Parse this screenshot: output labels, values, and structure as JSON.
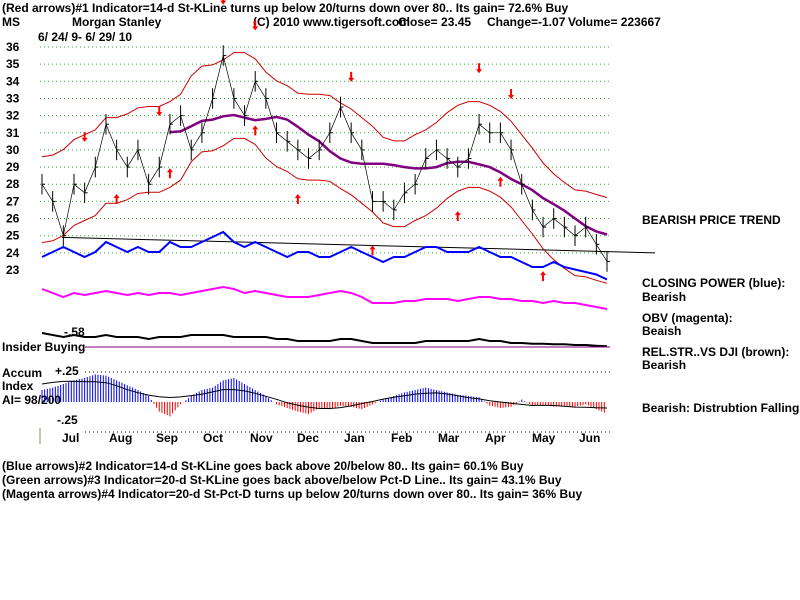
{
  "header": {
    "line1": "(Red arrows)#1 Indicator=14-d St-KLine turns up below 20/turns down over 80.. Its gain= 72.6% Buy",
    "symbol": "MS",
    "company": "Morgan Stanley",
    "copyright": "(C) 2010 www.tigersoft.com",
    "close": "Close=  23.45",
    "change": "Change=-1.07",
    "volume": "Volume= 223667",
    "date_range": "6/ 24/ 9- 6/ 29/ 10"
  },
  "labels": {
    "insider": "Insider Buying",
    "insider_value": "-.58",
    "accum_title": "Accum",
    "accum_title2": "Index",
    "accum_ai": "AI= 98/200",
    "accum_top": "+.25",
    "accum_bottom": "-.25",
    "trend": "BEARISH PRICE TREND",
    "cp_title": "CLOSING POWER (blue):",
    "cp_value": "Bearish",
    "obv_title": "OBV (magenta):",
    "obv_value": "Beaish",
    "rs_title": "REL.STR..VS DJI (brown):",
    "rs_value": "Bearish",
    "accum_status": "Bearish: Distrubtion Falling."
  },
  "footer": [
    "(Blue arrows)#2 Indicator=14-d St-KLine goes back above 20/below 80.. Its gain= 60.1% Buy",
    "(Green arrows)#3 Indicator=20-d St-KLine goes back above/below Pct-D Line.. Its gain= 43.1% Buy",
    "(Magenta arrows)#4 Indicator=20-d St-Pct-D turns up below 20/turns down over 80.. Its gain= 36% Buy"
  ],
  "chart_data": {
    "type": "line",
    "ylim": [
      23,
      36
    ],
    "yticks": [
      "36",
      "35",
      "34",
      "33",
      "32",
      "31",
      "30",
      "29",
      "28",
      "27",
      "26",
      "25",
      "24",
      "23"
    ],
    "months": [
      "Jul",
      "Aug",
      "Sep",
      "Oct",
      "Nov",
      "Dec",
      "Jan",
      "Feb",
      "Mar",
      "Apr",
      "May",
      "Jun"
    ],
    "grid": true,
    "colors": {
      "price": "#000000",
      "bands": "#cc0000",
      "ma": "#800080",
      "closing_power": "#0000ff",
      "obv": "#ff00ff",
      "rel_str": "#000000",
      "accum_pos": "#0000ff",
      "accum_neg": "#ff0000",
      "arrow": "#ff0000"
    },
    "price": [
      28,
      27,
      25,
      28,
      27.5,
      29,
      31.5,
      30,
      29,
      30,
      28,
      29,
      31.5,
      32,
      30,
      31,
      33,
      35.5,
      33,
      32,
      34,
      33,
      31,
      30.5,
      30,
      29.5,
      30,
      31,
      32.5,
      31,
      30,
      27,
      27,
      26.5,
      27.5,
      28,
      29.5,
      30,
      29.5,
      29,
      29.5,
      31.5,
      31,
      31,
      30,
      28,
      26.5,
      25.5,
      26,
      25.5,
      25,
      25.5,
      24.5,
      23.5
    ],
    "closing_power": [
      3,
      4,
      5,
      4,
      3,
      4,
      6,
      5,
      4,
      5,
      4,
      4,
      6,
      5,
      5,
      6,
      7,
      8,
      6,
      5,
      6,
      5,
      4,
      3,
      4,
      4,
      3,
      3,
      4,
      5,
      4,
      3,
      2,
      3,
      3,
      4,
      5,
      5,
      4,
      4,
      4,
      5,
      4,
      3,
      3,
      2,
      1,
      1,
      2,
      1,
      0.5,
      0,
      -0.5,
      -1.5
    ],
    "obv": [
      4,
      3,
      2,
      3,
      2.5,
      3,
      3.5,
      3,
      2.5,
      3,
      2.5,
      3,
      3,
      2.5,
      3,
      3.5,
      4,
      4.5,
      4,
      3,
      3.5,
      3,
      2.5,
      2,
      2,
      2,
      2.5,
      3,
      3.5,
      3,
      2,
      0.5,
      0.5,
      0.5,
      1,
      1,
      1.5,
      1.5,
      1.5,
      1,
      1.5,
      2,
      2,
      1.5,
      1.5,
      1,
      1,
      0.5,
      1,
      0.5,
      0.5,
      0,
      -0.5,
      -1
    ],
    "rel_str": [
      3,
      2.5,
      2,
      2.5,
      2,
      2,
      2.5,
      2,
      2,
      2,
      1.5,
      2,
      2,
      2,
      2.5,
      2.5,
      2.5,
      2.5,
      2,
      2,
      2,
      2,
      1.5,
      1.5,
      1,
      1,
      1,
      1,
      1.5,
      1.5,
      1,
      0.5,
      0.5,
      0.5,
      0.5,
      0.5,
      1,
      1,
      1,
      1,
      1,
      1.5,
      1,
      1,
      0.5,
      0.5,
      0.3,
      0.3,
      0.2,
      0.2,
      0,
      0,
      -0.2,
      -0.3
    ],
    "accum": [
      0.1,
      0.12,
      0.15,
      0.18,
      0.2,
      0.23,
      0.22,
      0.18,
      0.14,
      0.1,
      0.05,
      -0.08,
      -0.12,
      -0.02,
      0.05,
      0.1,
      0.12,
      0.18,
      0.2,
      0.15,
      0.1,
      0.05,
      -0.02,
      -0.05,
      -0.08,
      -0.1,
      -0.05,
      -0.06,
      -0.03,
      -0.04,
      -0.06,
      -0.02,
      0.02,
      0.05,
      0.08,
      0.1,
      0.12,
      0.1,
      0.08,
      0.06,
      0.05,
      0.04,
      -0.03,
      -0.05,
      -0.04,
      0.02,
      -0.03,
      -0.02,
      -0.04,
      -0.03,
      -0.04,
      -0.02,
      -0.06,
      -0.1
    ],
    "arrows": [
      {
        "i": 4,
        "dir": "down"
      },
      {
        "i": 7,
        "dir": "up"
      },
      {
        "i": 11,
        "dir": "down"
      },
      {
        "i": 12,
        "dir": "up"
      },
      {
        "i": 17,
        "dir": "down"
      },
      {
        "i": 20,
        "dir": "down"
      },
      {
        "i": 20,
        "dir": "up"
      },
      {
        "i": 24,
        "dir": "up"
      },
      {
        "i": 29,
        "dir": "down"
      },
      {
        "i": 31,
        "dir": "up"
      },
      {
        "i": 41,
        "dir": "down"
      },
      {
        "i": 39,
        "dir": "up"
      },
      {
        "i": 44,
        "dir": "down"
      },
      {
        "i": 43,
        "dir": "up"
      },
      {
        "i": 47,
        "dir": "up"
      }
    ]
  }
}
